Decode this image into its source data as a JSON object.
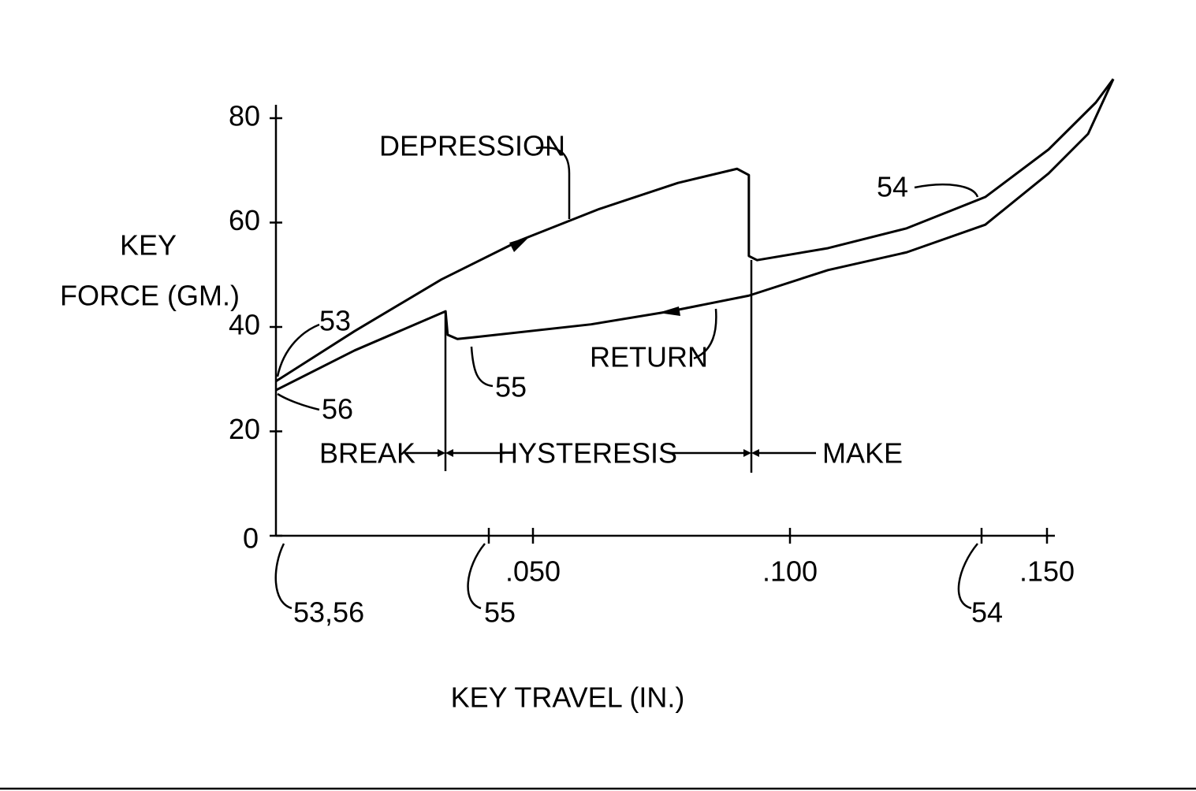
{
  "chart_data": {
    "type": "line",
    "xlabel": "KEY TRAVEL (IN.)",
    "ylabel": [
      "KEY",
      "FORCE (GM.)"
    ],
    "xlim": [
      0,
      0.152
    ],
    "ylim": [
      0,
      82
    ],
    "xticks": [
      {
        "value": 0.05,
        "label": ".050"
      },
      {
        "value": 0.1,
        "label": ".100"
      },
      {
        "value": 0.15,
        "label": ".150"
      }
    ],
    "yticks": [
      0,
      20,
      40,
      60,
      80
    ],
    "color": "#000000",
    "series": [
      {
        "name": "DEPRESSION",
        "x": [
          0,
          0.0153,
          0.0322,
          0.0475,
          0.0629,
          0.0782,
          0.0897,
          0.092,
          0.092,
          0.0936,
          0.1074,
          0.1227,
          0.138,
          0.1503,
          0.1595,
          0.1629
        ],
        "values": [
          29.6,
          39.2,
          49.1,
          56.6,
          62.6,
          67.6,
          70.3,
          69.1,
          53.6,
          52.8,
          55.1,
          58.9,
          64.9,
          74.0,
          83.0,
          87.5
        ]
      },
      {
        "name": "RETURN",
        "x": [
          0.1629,
          0.158,
          0.1503,
          0.138,
          0.1227,
          0.1074,
          0.092,
          0.0767,
          0.0613,
          0.0383,
          0.0353,
          0.0334,
          0.033,
          0.0153,
          0
        ],
        "values": [
          87.5,
          77.0,
          69.4,
          59.6,
          54.3,
          50.9,
          46.0,
          43.0,
          40.5,
          38.0,
          37.7,
          38.5,
          43.0,
          35.5,
          27.9
        ]
      }
    ],
    "annotations": [
      "53",
      "56",
      "55",
      "54",
      "BREAK",
      "HYSTERESIS",
      "MAKE",
      "53,56",
      "55",
      "54"
    ]
  }
}
